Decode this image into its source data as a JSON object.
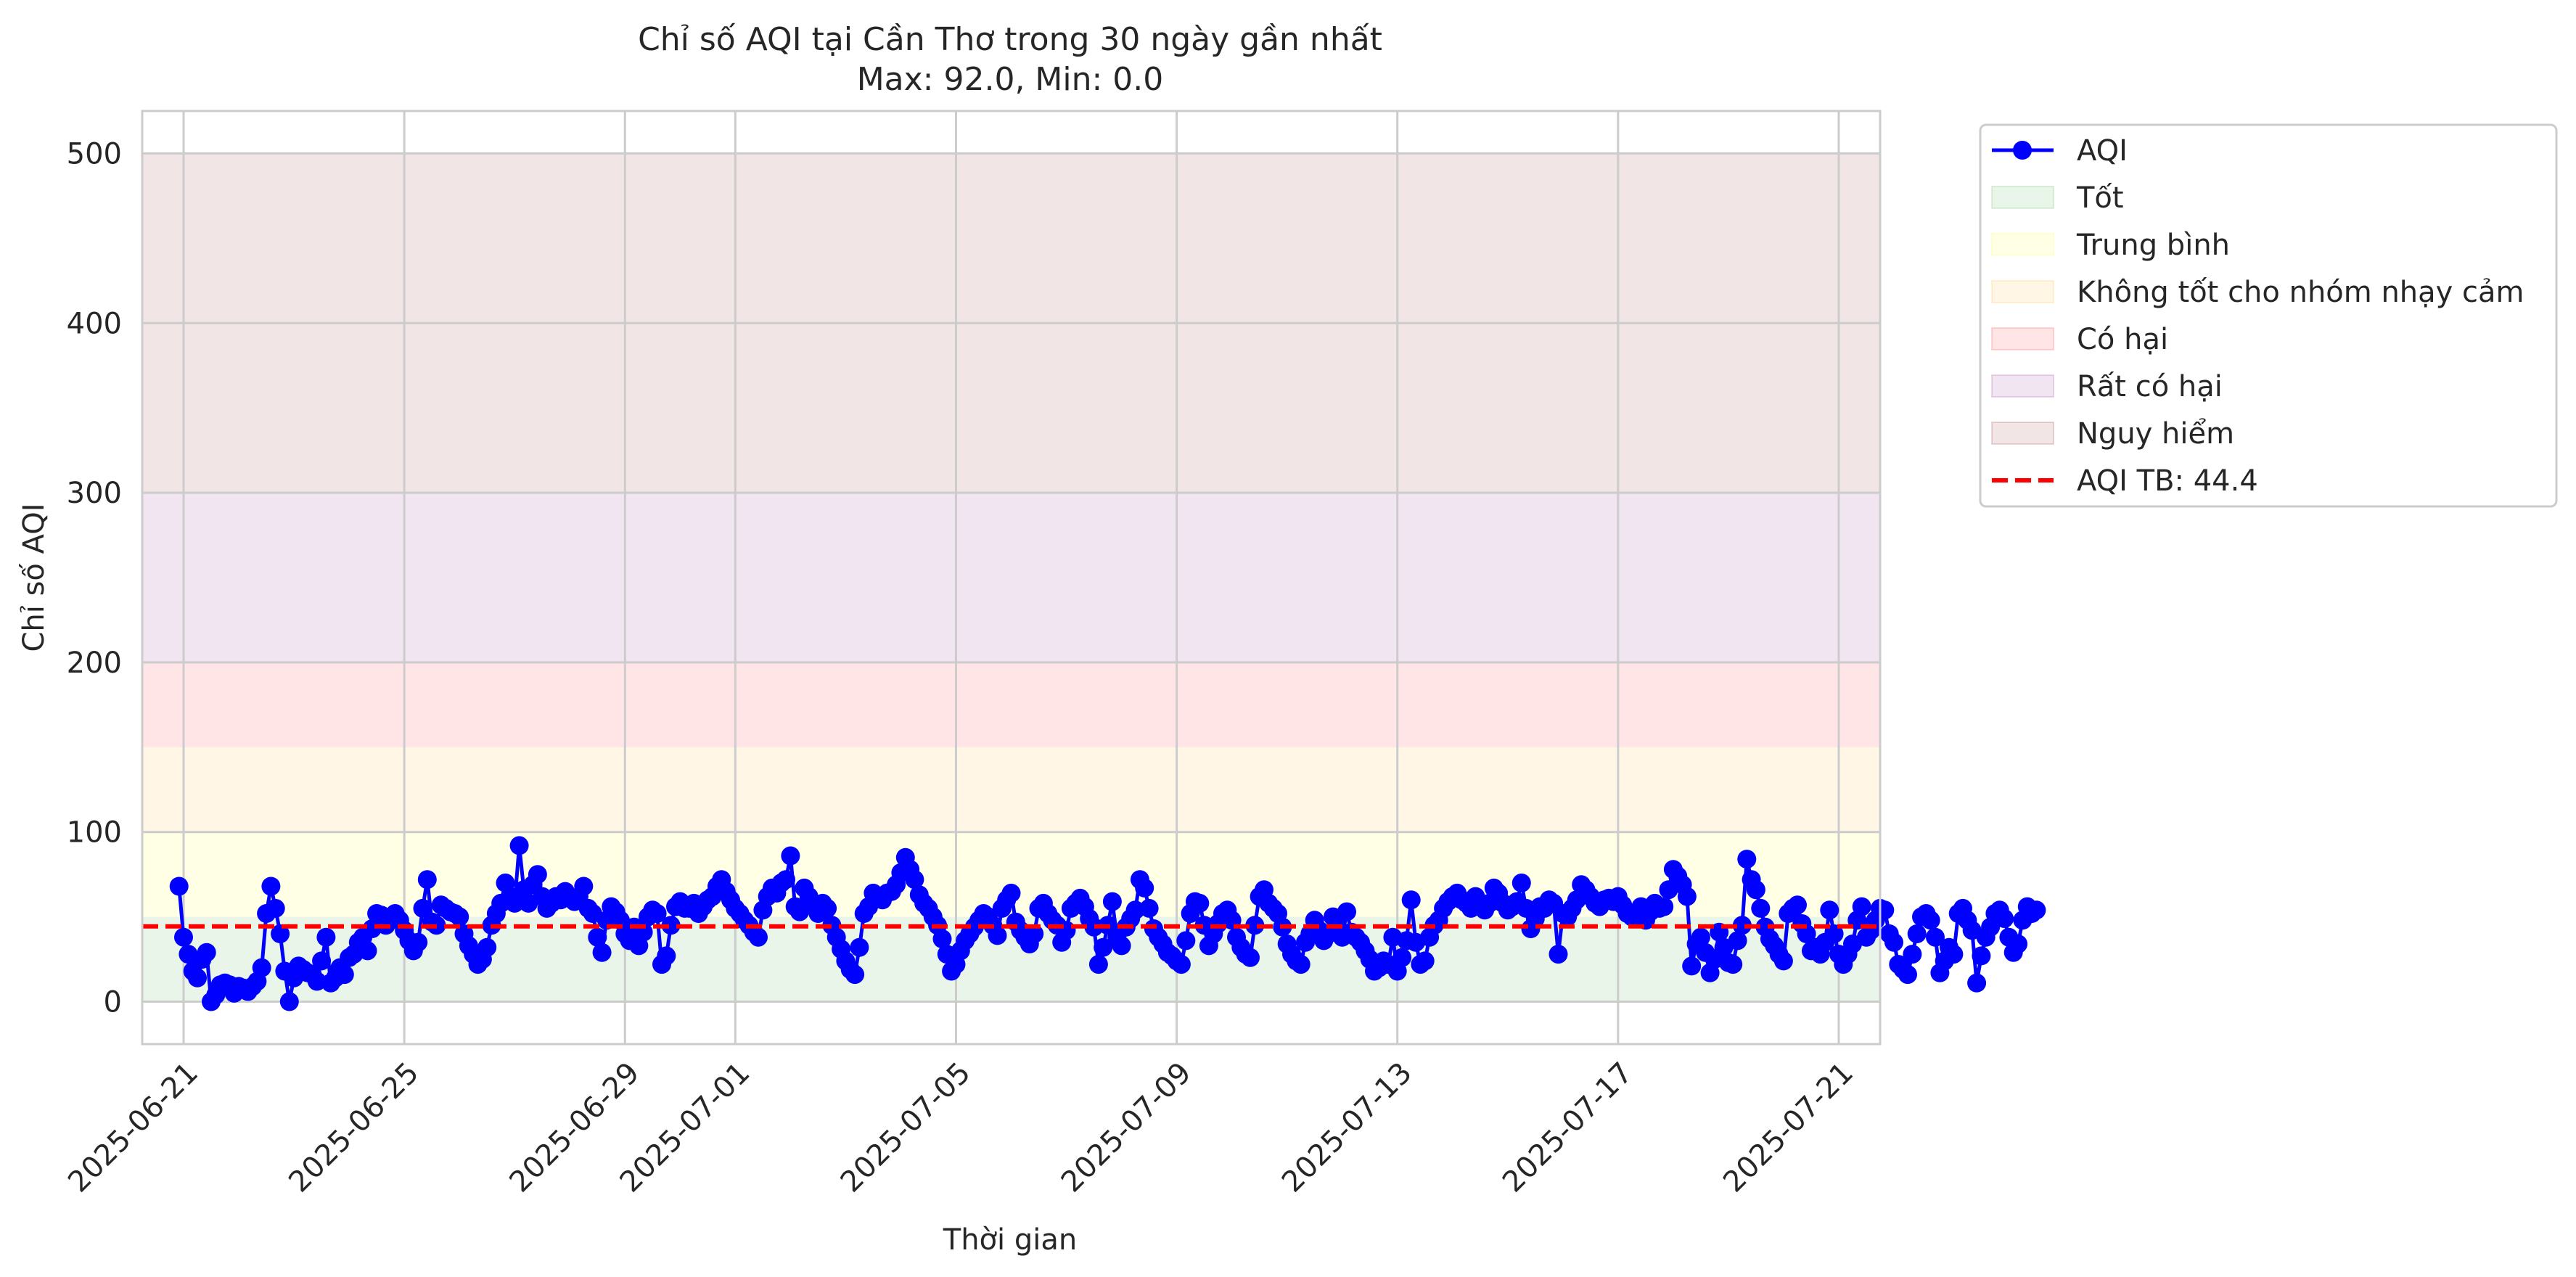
{
  "chart_data": {
    "type": "line",
    "title_line1": "Chỉ số AQI tại Cần Thơ trong 30 ngày gần nhất",
    "title_line2": "Max: 92.0, Min: 0.0",
    "xlabel": "Thời gian",
    "ylabel": "Chỉ số AQI",
    "ylim": [
      -25,
      525
    ],
    "yticks": [
      0,
      100,
      200,
      300,
      400,
      500
    ],
    "xlim": [
      "2025-06-20T06:00",
      "2025-07-21T18:00"
    ],
    "xticks": [
      "2025-06-21",
      "2025-06-25",
      "2025-06-29",
      "2025-07-01",
      "2025-07-05",
      "2025-07-09",
      "2025-07-13",
      "2025-07-17",
      "2025-07-21"
    ],
    "grid": true,
    "legend_position": "outside-top-right",
    "bands": [
      {
        "name": "Tốt",
        "from": 0,
        "to": 50,
        "color": "#2ca02c"
      },
      {
        "name": "Trung bình",
        "from": 50,
        "to": 100,
        "color": "#ffff00"
      },
      {
        "name": "Không tốt cho nhóm nhạy cảm",
        "from": 100,
        "to": 150,
        "color": "#ffa500"
      },
      {
        "name": "Có hại",
        "from": 150,
        "to": 200,
        "color": "#ff0000"
      },
      {
        "name": "Rất có hại",
        "from": 200,
        "to": 300,
        "color": "#800080"
      },
      {
        "name": "Nguy hiểm",
        "from": 300,
        "to": 500,
        "color": "#800000"
      }
    ],
    "mean_line": {
      "label": "AQI TB: 44.4",
      "value": 44.4,
      "color": "#ff0000"
    },
    "series": [
      {
        "name": "AQI",
        "color": "#0000ff",
        "x_start": "2025-06-20T22:00",
        "interval_hours": 2,
        "values": [
          68,
          38,
          28,
          18,
          14,
          25,
          29,
          0,
          4,
          10,
          11,
          10,
          5,
          9,
          8,
          6,
          9,
          12,
          20,
          52,
          68,
          55,
          40,
          18,
          0,
          14,
          21,
          19,
          17,
          16,
          12,
          24,
          38,
          11,
          14,
          20,
          16,
          26,
          28,
          35,
          38,
          30,
          43,
          52,
          51,
          45,
          48,
          52,
          48,
          42,
          36,
          30,
          35,
          55,
          72,
          47,
          45,
          57,
          55,
          53,
          52,
          50,
          40,
          33,
          28,
          22,
          25,
          32,
          45,
          52,
          58,
          70,
          62,
          58,
          92,
          66,
          58,
          69,
          75,
          62,
          55,
          58,
          62,
          60,
          65,
          61,
          59,
          62,
          68,
          55,
          52,
          38,
          29,
          48,
          56,
          53,
          48,
          40,
          36,
          44,
          33,
          41,
          50,
          54,
          52,
          22,
          27,
          45,
          56,
          59,
          55,
          55,
          58,
          52,
          56,
          60,
          62,
          68,
          72,
          65,
          60,
          55,
          52,
          48,
          45,
          41,
          38,
          54,
          62,
          67,
          64,
          70,
          72,
          86,
          56,
          53,
          67,
          62,
          58,
          52,
          58,
          55,
          45,
          38,
          31,
          24,
          19,
          16,
          32,
          52,
          56,
          64,
          62,
          60,
          64,
          65,
          69,
          76,
          85,
          78,
          72,
          63,
          58,
          55,
          50,
          45,
          37,
          28,
          18,
          22,
          30,
          36,
          40,
          44,
          48,
          52,
          50,
          45,
          39,
          55,
          60,
          64,
          47,
          42,
          38,
          34,
          40,
          55,
          58,
          52,
          48,
          45,
          35,
          42,
          55,
          58,
          61,
          56,
          49,
          44,
          22,
          32,
          45,
          59,
          38,
          33,
          44,
          49,
          54,
          72,
          67,
          55,
          43,
          38,
          34,
          29,
          27,
          24,
          22,
          36,
          52,
          59,
          58,
          45,
          33,
          40,
          46,
          52,
          54,
          48,
          38,
          32,
          28,
          26,
          45,
          62,
          66,
          58,
          55,
          52,
          44,
          34,
          28,
          24,
          22,
          35,
          40,
          48,
          42,
          36,
          40,
          50,
          44,
          38,
          53,
          41,
          38,
          35,
          30,
          25,
          18,
          20,
          24,
          22,
          38,
          18,
          26,
          36,
          60,
          35,
          22,
          24,
          38,
          45,
          48,
          55,
          59,
          62,
          64,
          60,
          58,
          55,
          62,
          57,
          54,
          58,
          67,
          64,
          58,
          54,
          56,
          59,
          70,
          55,
          43,
          49,
          56,
          55,
          60,
          58,
          28,
          52,
          50,
          55,
          60,
          69,
          66,
          62,
          58,
          56,
          60,
          61,
          59,
          62,
          57,
          52,
          50,
          52,
          56,
          48,
          53,
          58,
          55,
          56,
          66,
          78,
          74,
          69,
          62,
          21,
          34,
          38,
          29,
          17,
          25,
          41,
          32,
          23,
          22,
          36,
          45,
          84,
          72,
          66,
          55,
          44,
          37,
          33,
          28,
          24,
          52,
          55,
          57,
          46,
          40,
          30,
          32,
          28,
          35,
          54,
          40,
          28,
          22,
          28,
          34,
          48,
          56,
          38,
          42,
          48,
          55,
          54,
          40,
          35,
          22,
          19,
          16,
          28,
          40,
          50,
          52,
          48,
          38,
          17,
          24,
          32,
          28,
          52,
          55,
          48,
          42,
          11,
          27,
          38,
          44,
          52,
          54,
          49,
          38,
          29,
          34,
          48,
          56,
          52,
          54
        ]
      }
    ]
  },
  "legend": {
    "items": [
      "AQI",
      "Tốt",
      "Trung bình",
      "Không tốt cho nhóm nhạy cảm",
      "Có hại",
      "Rất có hại",
      "Nguy hiểm",
      "AQI TB: 44.4"
    ]
  }
}
